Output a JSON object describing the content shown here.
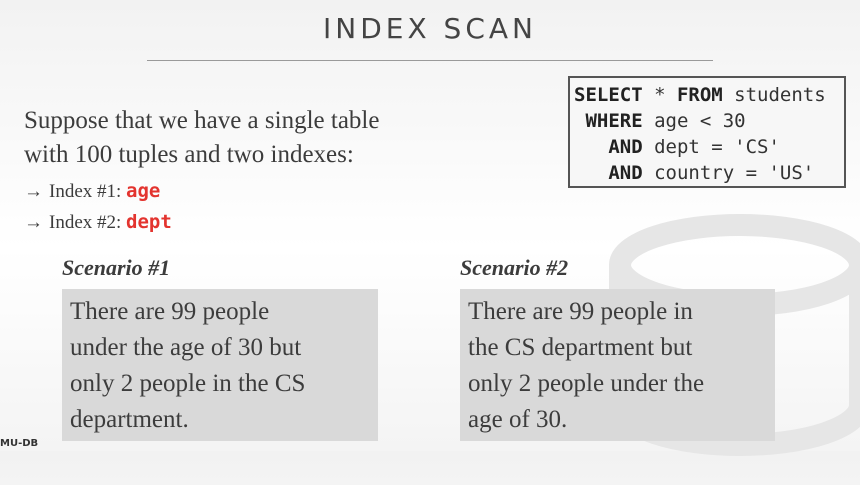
{
  "title": "INDEX SCAN",
  "intro": {
    "line1": "Suppose that we have a single table",
    "line2": "with 100 tuples and two indexes:"
  },
  "indexes": [
    {
      "arrow": "→",
      "label": "Index #1: ",
      "name": "age"
    },
    {
      "arrow": "→",
      "label": "Index #2: ",
      "name": "dept"
    }
  ],
  "sql": {
    "line1": {
      "kw1": "SELECT",
      "mid": " * ",
      "kw2": "FROM",
      "rest": " students"
    },
    "line2": {
      "pad": " ",
      "kw": "WHERE",
      "rest": " age < 30"
    },
    "line3": {
      "pad": "   ",
      "kw": "AND",
      "rest": " dept = 'CS'"
    },
    "line4": {
      "pad": "   ",
      "kw": "AND",
      "rest": " country = 'US'"
    }
  },
  "scenarios": [
    {
      "label": "Scenario #1",
      "lines": [
        "There are 99 people",
        "under the age of 30 but",
        "only 2 people in the CS",
        "department."
      ]
    },
    {
      "label": "Scenario #2",
      "lines": [
        "There are 99 people in",
        "the CS department but",
        "only 2 people under the",
        "age of 30."
      ]
    }
  ],
  "footer": "MU-DB"
}
